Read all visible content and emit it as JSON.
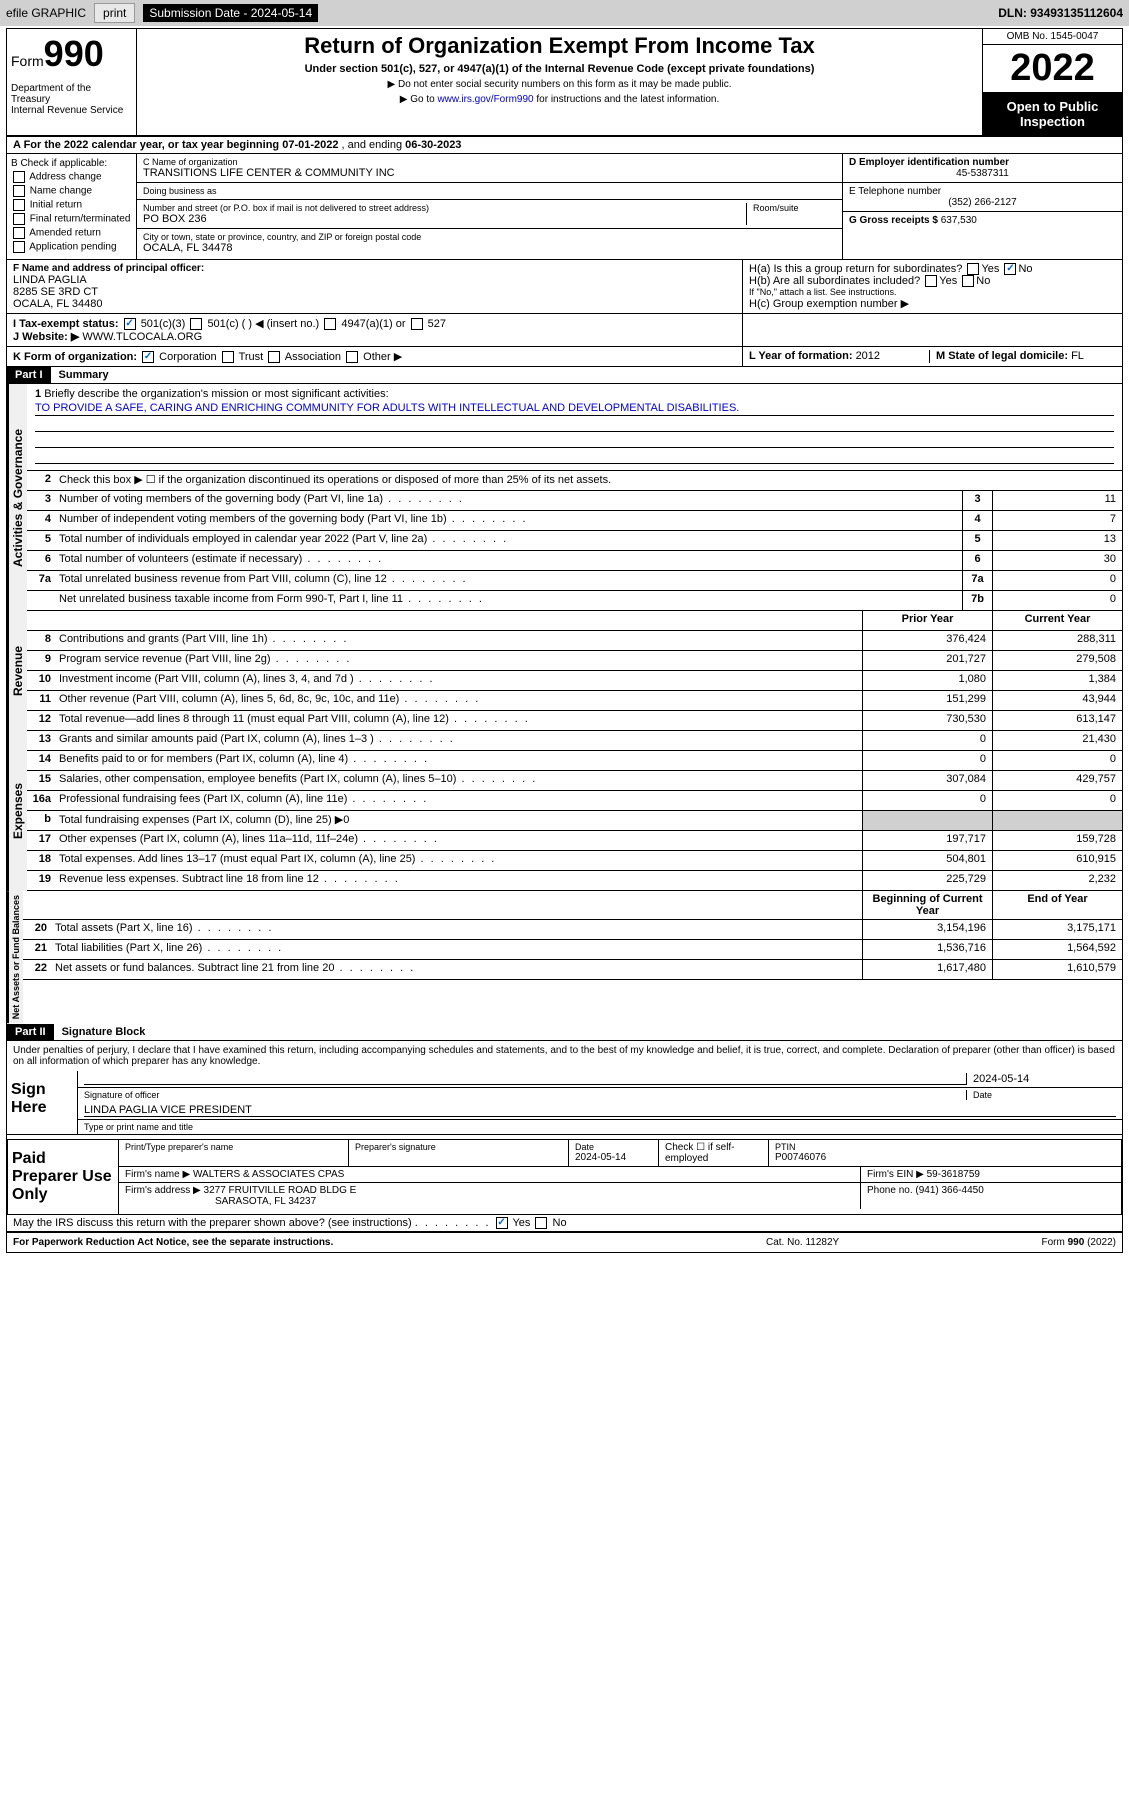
{
  "toolbar": {
    "efile": "efile GRAPHIC",
    "print": "print",
    "subdate_label": "Submission Date - ",
    "subdate": "2024-05-14",
    "dln_label": "DLN: ",
    "dln": "93493135112604"
  },
  "header": {
    "form_label": "Form",
    "form_num": "990",
    "dept": "Department of the Treasury\nInternal Revenue Service",
    "title": "Return of Organization Exempt From Income Tax",
    "subtitle": "Under section 501(c), 527, or 4947(a)(1) of the Internal Revenue Code (except private foundations)",
    "note1": "▶ Do not enter social security numbers on this form as it may be made public.",
    "note2_pre": "▶ Go to ",
    "note2_link": "www.irs.gov/Form990",
    "note2_post": " for instructions and the latest information.",
    "omb": "OMB No. 1545-0047",
    "year": "2022",
    "inspect": "Open to Public Inspection"
  },
  "row_a": {
    "text_pre": "A For the 2022 calendar year, or tax year beginning ",
    "begin": "07-01-2022",
    "mid": " , and ending ",
    "end": "06-30-2023"
  },
  "section_b": {
    "label": "B Check if applicable:",
    "items": [
      "Address change",
      "Name change",
      "Initial return",
      "Final return/terminated",
      "Amended return",
      "Application pending"
    ]
  },
  "section_c": {
    "name_label": "C Name of organization",
    "name": "TRANSITIONS LIFE CENTER & COMMUNITY INC",
    "dba_label": "Doing business as",
    "dba": "",
    "addr_label": "Number and street (or P.O. box if mail is not delivered to street address)",
    "room_label": "Room/suite",
    "addr": "PO BOX 236",
    "city_label": "City or town, state or province, country, and ZIP or foreign postal code",
    "city": "OCALA, FL  34478"
  },
  "section_d": {
    "label": "D Employer identification number",
    "val": "45-5387311"
  },
  "section_e": {
    "label": "E Telephone number",
    "val": "(352) 266-2127"
  },
  "section_g": {
    "label": "G Gross receipts $ ",
    "val": "637,530"
  },
  "section_f": {
    "label": "F Name and address of principal officer:",
    "name": "LINDA PAGLIA",
    "addr1": "8285 SE 3RD CT",
    "addr2": "OCALA, FL  34480"
  },
  "section_h": {
    "a": "H(a)  Is this a group return for subordinates?",
    "a_yes": "Yes",
    "a_no": "No",
    "b": "H(b)  Are all subordinates included?",
    "b_note": "If \"No,\" attach a list. See instructions.",
    "c": "H(c)  Group exemption number ▶"
  },
  "row_i": {
    "label": "I   Tax-exempt status:",
    "o1": "501(c)(3)",
    "o2": "501(c) (  ) ◀ (insert no.)",
    "o3": "4947(a)(1) or",
    "o4": "527"
  },
  "row_j": {
    "label": "J   Website: ▶ ",
    "val": "WWW.TLCOCALA.ORG"
  },
  "row_k": {
    "label": "K Form of organization:",
    "o1": "Corporation",
    "o2": "Trust",
    "o3": "Association",
    "o4": "Other ▶"
  },
  "row_l": {
    "label": "L Year of formation: ",
    "val": "2012"
  },
  "row_m": {
    "label": "M State of legal domicile: ",
    "val": "FL"
  },
  "part1": {
    "hdr": "Part I",
    "title": "Summary",
    "tab_ag": "Activities & Governance",
    "tab_rev": "Revenue",
    "tab_exp": "Expenses",
    "tab_na": "Net Assets or Fund Balances",
    "q1": "Briefly describe the organization's mission or most significant activities:",
    "mission": "TO PROVIDE A SAFE, CARING AND ENRICHING COMMUNITY FOR ADULTS WITH INTELLECTUAL AND DEVELOPMENTAL DISABILITIES.",
    "q2": "Check this box ▶ ☐  if the organization discontinued its operations or disposed of more than 25% of its net assets.",
    "lines_ag": [
      {
        "n": "3",
        "d": "Number of voting members of the governing body (Part VI, line 1a)",
        "box": "3",
        "v": "11"
      },
      {
        "n": "4",
        "d": "Number of independent voting members of the governing body (Part VI, line 1b)",
        "box": "4",
        "v": "7"
      },
      {
        "n": "5",
        "d": "Total number of individuals employed in calendar year 2022 (Part V, line 2a)",
        "box": "5",
        "v": "13"
      },
      {
        "n": "6",
        "d": "Total number of volunteers (estimate if necessary)",
        "box": "6",
        "v": "30"
      },
      {
        "n": "7a",
        "d": "Total unrelated business revenue from Part VIII, column (C), line 12",
        "box": "7a",
        "v": "0"
      },
      {
        "n": "",
        "d": "Net unrelated business taxable income from Form 990-T, Part I, line 11",
        "box": "7b",
        "v": "0"
      }
    ],
    "col_py": "Prior Year",
    "col_cy": "Current Year",
    "lines_rev": [
      {
        "n": "8",
        "d": "Contributions and grants (Part VIII, line 1h)",
        "py": "376,424",
        "cy": "288,311"
      },
      {
        "n": "9",
        "d": "Program service revenue (Part VIII, line 2g)",
        "py": "201,727",
        "cy": "279,508"
      },
      {
        "n": "10",
        "d": "Investment income (Part VIII, column (A), lines 3, 4, and 7d )",
        "py": "1,080",
        "cy": "1,384"
      },
      {
        "n": "11",
        "d": "Other revenue (Part VIII, column (A), lines 5, 6d, 8c, 9c, 10c, and 11e)",
        "py": "151,299",
        "cy": "43,944"
      },
      {
        "n": "12",
        "d": "Total revenue—add lines 8 through 11 (must equal Part VIII, column (A), line 12)",
        "py": "730,530",
        "cy": "613,147"
      }
    ],
    "lines_exp": [
      {
        "n": "13",
        "d": "Grants and similar amounts paid (Part IX, column (A), lines 1–3 )",
        "py": "0",
        "cy": "21,430"
      },
      {
        "n": "14",
        "d": "Benefits paid to or for members (Part IX, column (A), line 4)",
        "py": "0",
        "cy": "0"
      },
      {
        "n": "15",
        "d": "Salaries, other compensation, employee benefits (Part IX, column (A), lines 5–10)",
        "py": "307,084",
        "cy": "429,757"
      },
      {
        "n": "16a",
        "d": "Professional fundraising fees (Part IX, column (A), line 11e)",
        "py": "0",
        "cy": "0"
      },
      {
        "n": "b",
        "d": "Total fundraising expenses (Part IX, column (D), line 25) ▶0",
        "py": "",
        "cy": "",
        "shade": true
      },
      {
        "n": "17",
        "d": "Other expenses (Part IX, column (A), lines 11a–11d, 11f–24e)",
        "py": "197,717",
        "cy": "159,728"
      },
      {
        "n": "18",
        "d": "Total expenses. Add lines 13–17 (must equal Part IX, column (A), line 25)",
        "py": "504,801",
        "cy": "610,915"
      },
      {
        "n": "19",
        "d": "Revenue less expenses. Subtract line 18 from line 12",
        "py": "225,729",
        "cy": "2,232"
      }
    ],
    "col_boy": "Beginning of Current Year",
    "col_eoy": "End of Year",
    "lines_na": [
      {
        "n": "20",
        "d": "Total assets (Part X, line 16)",
        "py": "3,154,196",
        "cy": "3,175,171"
      },
      {
        "n": "21",
        "d": "Total liabilities (Part X, line 26)",
        "py": "1,536,716",
        "cy": "1,564,592"
      },
      {
        "n": "22",
        "d": "Net assets or fund balances. Subtract line 21 from line 20",
        "py": "1,617,480",
        "cy": "1,610,579"
      }
    ]
  },
  "part2": {
    "hdr": "Part II",
    "title": "Signature Block",
    "decl": "Under penalties of perjury, I declare that I have examined this return, including accompanying schedules and statements, and to the best of my knowledge and belief, it is true, correct, and complete. Declaration of preparer (other than officer) is based on all information of which preparer has any knowledge.",
    "sign_here": "Sign Here",
    "sig_officer": "Signature of officer",
    "sig_date": "2024-05-14",
    "date_label": "Date",
    "officer_name": "LINDA PAGLIA  VICE PRESIDENT",
    "type_name": "Type or print name and title",
    "paid_prep": "Paid Preparer Use Only",
    "prep_name_label": "Print/Type preparer's name",
    "prep_sig_label": "Preparer's signature",
    "prep_date": "2024-05-14",
    "prep_check": "Check ☐ if self-employed",
    "ptin_label": "PTIN",
    "ptin": "P00746076",
    "firm_name_label": "Firm's name    ▶ ",
    "firm_name": "WALTERS & ASSOCIATES CPAS",
    "firm_ein_label": "Firm's EIN ▶ ",
    "firm_ein": "59-3618759",
    "firm_addr_label": "Firm's address ▶ ",
    "firm_addr1": "3277 FRUITVILLE ROAD BLDG E",
    "firm_addr2": "SARASOTA, FL  34237",
    "phone_label": "Phone no. ",
    "phone": "(941) 366-4450",
    "discuss": "May the IRS discuss this return with the preparer shown above? (see instructions)",
    "yes": "Yes",
    "no": "No"
  },
  "footer": {
    "pra": "For Paperwork Reduction Act Notice, see the separate instructions.",
    "cat": "Cat. No. 11282Y",
    "form": "Form 990 (2022)"
  }
}
